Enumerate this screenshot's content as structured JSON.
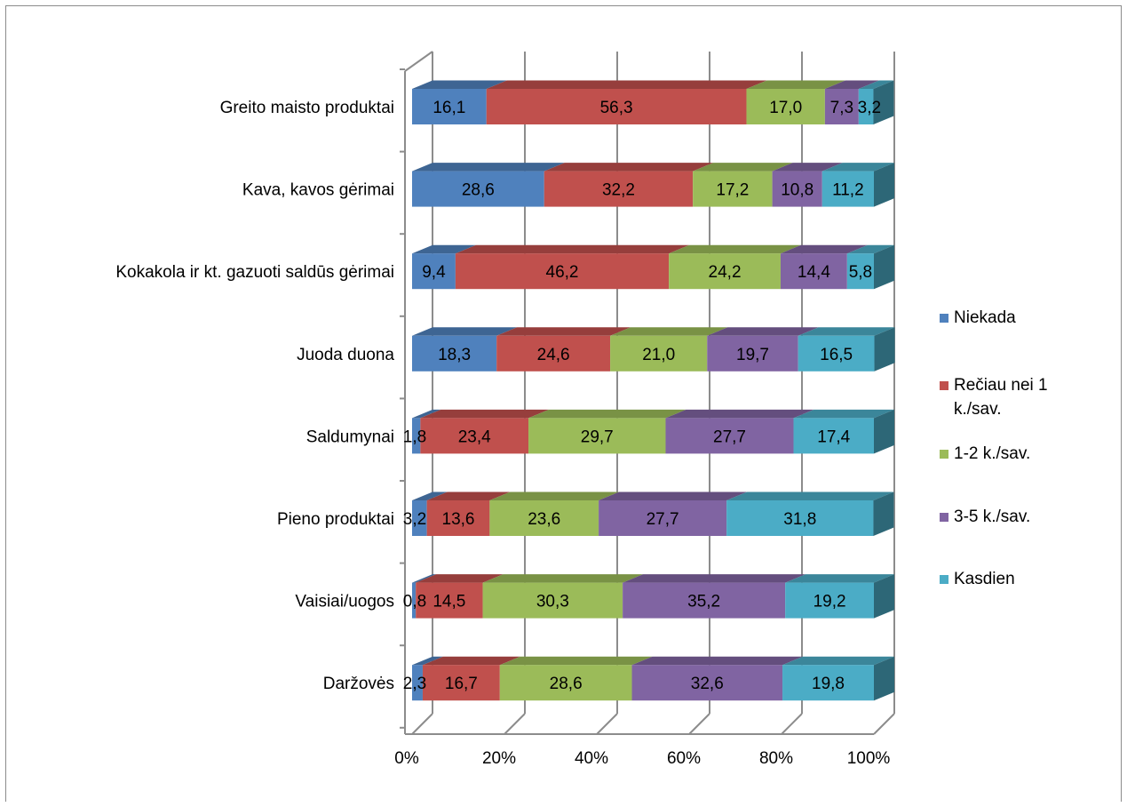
{
  "chart_data": {
    "type": "bar",
    "orientation": "horizontal",
    "stacked": "100%",
    "style": "3d",
    "categories": [
      "Greito maisto produktai",
      "Kava, kavos gėrimai",
      "Kokakola ir kt. gazuoti saldūs gėrimai",
      "Juoda duona",
      "Saldumynai",
      "Pieno produktai",
      "Vaisiai/uogos",
      "Daržovės"
    ],
    "series": [
      {
        "name": "Niekada",
        "color": "#4F81BD",
        "values": [
          16.1,
          28.6,
          9.4,
          18.3,
          1.8,
          3.2,
          0.8,
          2.3
        ],
        "labels": [
          "16,1",
          "28,6",
          "9,4",
          "18,3",
          "1,8",
          "3,2",
          "0,8",
          "2,3"
        ]
      },
      {
        "name": "Rečiau nei 1 k./sav.",
        "color": "#C0504D",
        "values": [
          56.3,
          32.2,
          46.2,
          24.6,
          23.4,
          13.6,
          14.5,
          16.7
        ],
        "labels": [
          "56,3",
          "32,2",
          "46,2",
          "24,6",
          "23,4",
          "13,6",
          "14,5",
          "16,7"
        ]
      },
      {
        "name": "1-2 k./sav.",
        "color": "#9BBB59",
        "values": [
          17.0,
          17.2,
          24.2,
          21.0,
          29.7,
          23.6,
          30.3,
          28.6
        ],
        "labels": [
          "17,0",
          "17,2",
          "24,2",
          "21,0",
          "29,7",
          "23,6",
          "30,3",
          "28,6"
        ]
      },
      {
        "name": "3-5 k./sav.",
        "color": "#8064A2",
        "values": [
          7.3,
          10.8,
          14.4,
          19.7,
          27.7,
          27.7,
          35.2,
          32.6
        ],
        "labels": [
          "7,3",
          "10,8",
          "14,4",
          "19,7",
          "27,7",
          "27,7",
          "35,2",
          "32,6"
        ]
      },
      {
        "name": "Kasdien",
        "color": "#4BACC6",
        "values": [
          3.2,
          11.2,
          5.8,
          16.5,
          17.4,
          31.8,
          19.2,
          19.8
        ],
        "labels": [
          "3,2",
          "11,2",
          "5,8",
          "16,5",
          "17,4",
          "31,8",
          "19,2",
          "19,8"
        ]
      }
    ],
    "x_ticks": [
      "0%",
      "20%",
      "40%",
      "60%",
      "80%",
      "100%"
    ],
    "xlim": [
      0,
      100
    ],
    "grid": true,
    "legend_position": "right"
  }
}
